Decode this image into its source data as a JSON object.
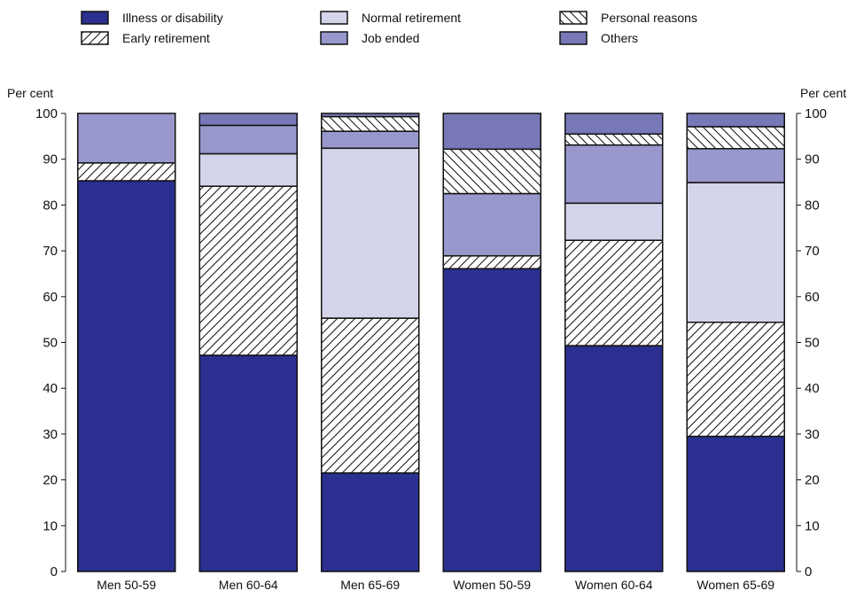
{
  "chart_data": {
    "type": "bar",
    "stacked": true,
    "title": "",
    "ylabel_left": "Per cent",
    "ylabel_right": "Per cent",
    "ylim": [
      0,
      100
    ],
    "yticks": [
      0,
      10,
      20,
      30,
      40,
      50,
      60,
      70,
      80,
      90,
      100
    ],
    "legend_position": "top",
    "categories": [
      "Men 50-59",
      "Men 60-64",
      "Men 65-69",
      "Women 50-59",
      "Women 60-64",
      "Women 65-69"
    ],
    "series": [
      {
        "name": "Illness or disability",
        "style": "solid",
        "color": "#2b2f8f",
        "values": [
          85.3,
          47.2,
          21.5,
          66.1,
          49.3,
          29.5
        ]
      },
      {
        "name": "Early retirement",
        "style": "hatch-forward",
        "color": "#ffffff",
        "values": [
          3.9,
          36.9,
          33.8,
          2.8,
          23.0,
          24.9
        ]
      },
      {
        "name": "Normal retirement",
        "style": "solid",
        "color": "#d4d4ea",
        "values": [
          0,
          7.1,
          37.1,
          0,
          8.1,
          30.5
        ]
      },
      {
        "name": "Job ended",
        "style": "solid",
        "color": "#9898cc",
        "values": [
          10.8,
          6.2,
          3.7,
          13.6,
          12.7,
          7.4
        ]
      },
      {
        "name": "Personal reasons",
        "style": "hatch-back",
        "color": "#ffffff",
        "values": [
          0,
          0,
          3.2,
          9.7,
          2.4,
          4.8
        ]
      },
      {
        "name": "Others",
        "style": "solid",
        "color": "#7878b8",
        "values": [
          0,
          2.6,
          0.7,
          7.8,
          4.5,
          2.9
        ]
      }
    ]
  }
}
